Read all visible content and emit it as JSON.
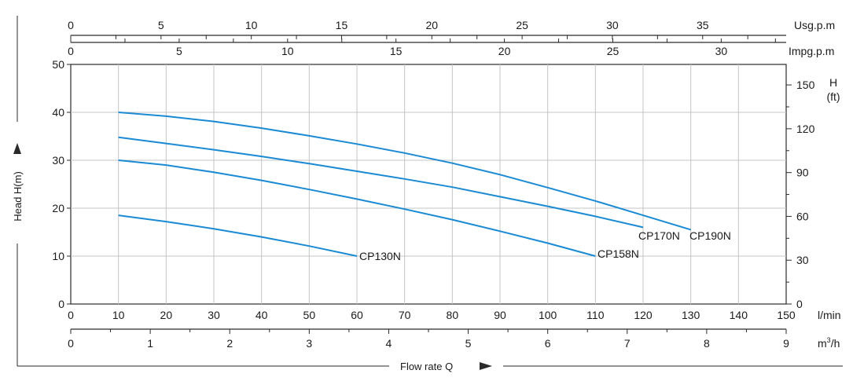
{
  "chart_data": {
    "type": "line",
    "xlabel": "Flow rate Q",
    "ylabel": "Head H(m)",
    "x_unit": "l/min",
    "xlim": [
      0,
      150
    ],
    "ylim": [
      0,
      50
    ],
    "x_ticks": [
      0,
      10,
      20,
      30,
      40,
      50,
      60,
      70,
      80,
      90,
      100,
      110,
      120,
      130,
      140,
      150
    ],
    "y_ticks": [
      0,
      10,
      20,
      30,
      40,
      50
    ],
    "grid": true,
    "secondary_axes": {
      "top_usgpm": {
        "unit": "Usg.p.m",
        "ticks": [
          0,
          5,
          10,
          15,
          20,
          25,
          30,
          35
        ]
      },
      "top_impgpm": {
        "unit": "Impg.p.m",
        "ticks": [
          0,
          5,
          10,
          15,
          20,
          25,
          30
        ]
      },
      "bottom_m3h": {
        "unit_base": "m",
        "unit_sup": "3",
        "unit_tail": "/h",
        "ticks": [
          0,
          1,
          2,
          3,
          4,
          5,
          6,
          7,
          8,
          9
        ]
      },
      "right_ft": {
        "unit_line1": "H",
        "unit_line2": "(ft)",
        "ticks": [
          0,
          30,
          60,
          90,
          120,
          150
        ]
      }
    },
    "series": [
      {
        "name": "CP130N",
        "x": [
          10,
          20,
          30,
          40,
          50,
          60
        ],
        "y": [
          18.5,
          17.2,
          15.7,
          14.0,
          12.1,
          10.0
        ]
      },
      {
        "name": "CP158N",
        "x": [
          10,
          20,
          30,
          40,
          50,
          60,
          70,
          80,
          90,
          100,
          110
        ],
        "y": [
          30,
          29.0,
          27.5,
          25.8,
          23.9,
          21.9,
          19.8,
          17.6,
          15.2,
          12.7,
          10.0
        ]
      },
      {
        "name": "CP170N",
        "x": [
          10,
          20,
          30,
          40,
          50,
          60,
          70,
          80,
          90,
          100,
          110,
          120
        ],
        "y": [
          34.8,
          33.5,
          32.2,
          30.8,
          29.3,
          27.7,
          26.1,
          24.4,
          22.4,
          20.4,
          18.3,
          16.0
        ]
      },
      {
        "name": "CP190N",
        "x": [
          10,
          20,
          30,
          40,
          50,
          60,
          70,
          80,
          90,
          100,
          110,
          120,
          130
        ],
        "y": [
          40,
          39.2,
          38.1,
          36.7,
          35.1,
          33.4,
          31.5,
          29.4,
          27.0,
          24.3,
          21.5,
          18.5,
          15.5
        ]
      }
    ],
    "curve_color": "#1a8ad4"
  }
}
